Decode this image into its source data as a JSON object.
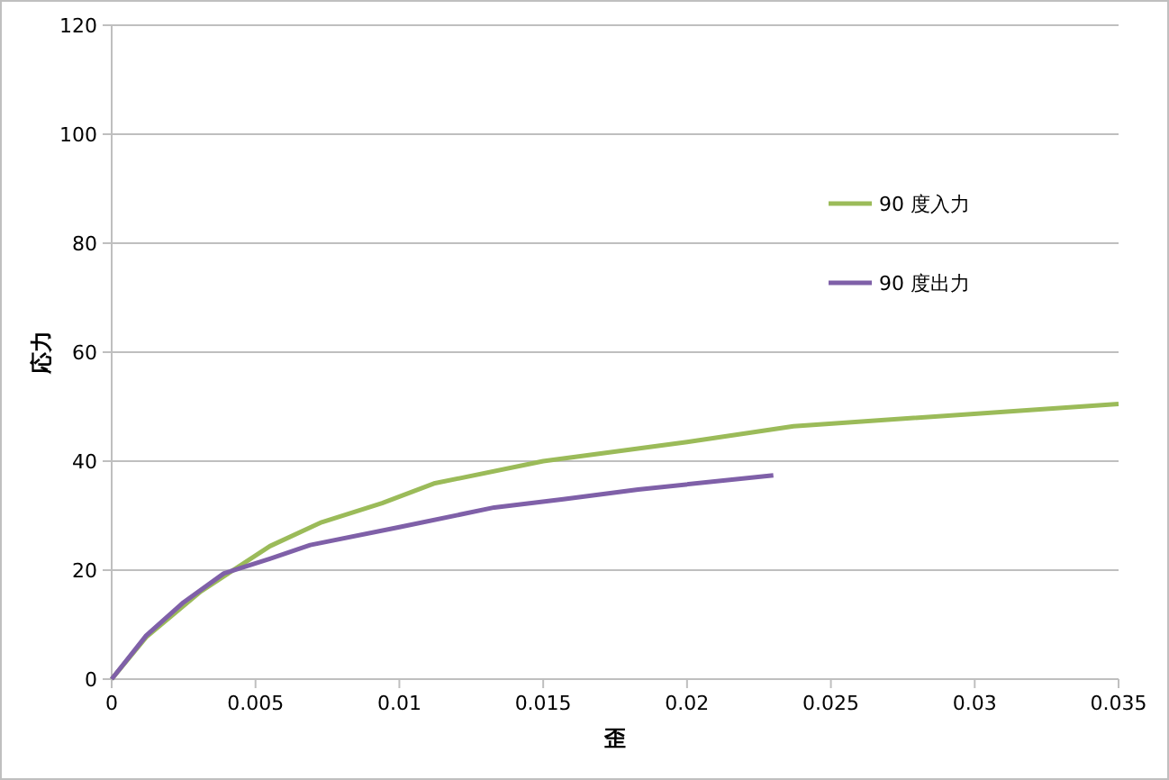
{
  "chart_data": {
    "type": "line",
    "xlabel": "歪",
    "ylabel": "応力",
    "xlim": [
      0,
      0.035
    ],
    "xticks": [
      0,
      0.005,
      0.01,
      0.015,
      0.02,
      0.025,
      0.03,
      0.035
    ],
    "ylim": [
      0,
      120
    ],
    "yticks": [
      0,
      20,
      40,
      60,
      80,
      100,
      120
    ],
    "grid": "y",
    "legend": "right",
    "series": [
      {
        "name": "90 度入力",
        "color": "#9bbb59",
        "x": [
          0,
          0.0012,
          0.0031,
          0.0055,
          0.0073,
          0.0094,
          0.0112,
          0.015,
          0.02,
          0.0237,
          0.035
        ],
        "values": [
          0,
          7.7,
          16.1,
          24.4,
          28.8,
          32.3,
          35.9,
          40,
          43.5,
          46.4,
          50.5
        ]
      },
      {
        "name": "90 度出力",
        "color": "#7f60a8",
        "x": [
          0,
          0.0012,
          0.0025,
          0.0039,
          0.0055,
          0.0069,
          0.01,
          0.0133,
          0.0157,
          0.0183,
          0.023
        ],
        "values": [
          0,
          8,
          14.1,
          19.4,
          22.1,
          24.6,
          27.9,
          31.5,
          33,
          34.8,
          37.4
        ]
      }
    ]
  }
}
